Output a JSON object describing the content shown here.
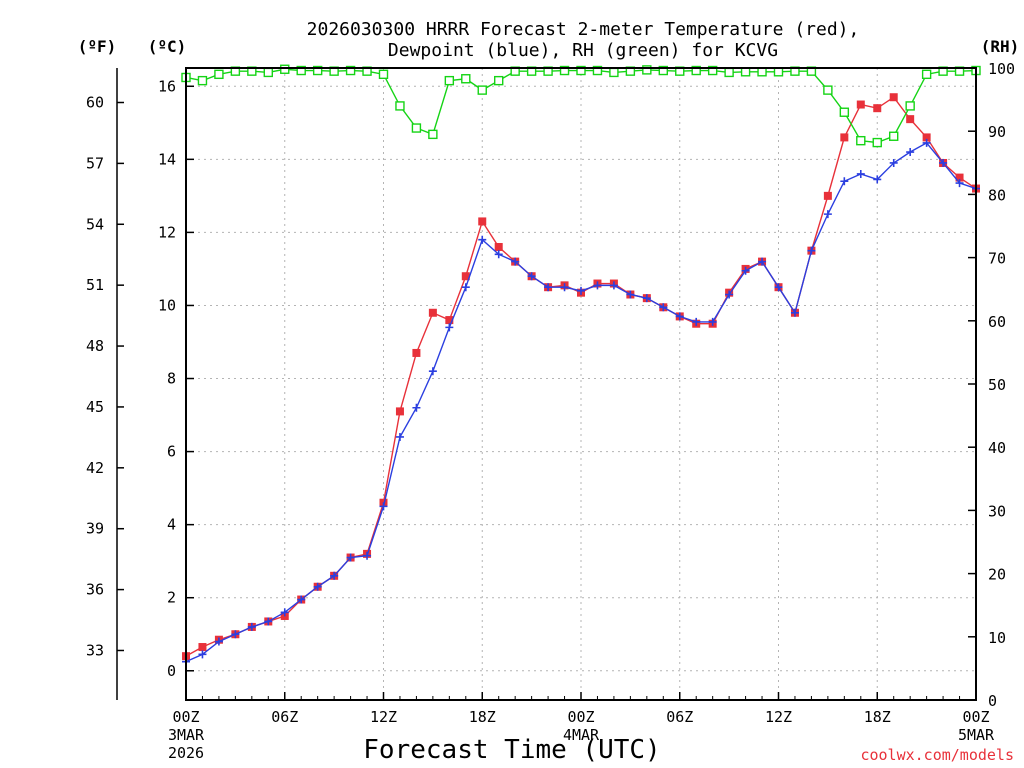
{
  "chart_data": {
    "type": "line",
    "title_lines": [
      "2026030300 HRRR Forecast 2-meter Temperature (red),",
      "Dewpoint (blue), RH (green) for KCVG"
    ],
    "xlabel": "Forecast Time (UTC)",
    "x_start_label": [
      "3MAR",
      "2026"
    ],
    "x_tick_labels": [
      "00Z",
      "06Z",
      "12Z",
      "18Z",
      "00Z",
      "06Z",
      "12Z",
      "18Z",
      "00Z"
    ],
    "x_date_labels": [
      {
        "tick": 0,
        "lines": [
          "3MAR",
          "2026"
        ]
      },
      {
        "tick": 4,
        "lines": [
          "4MAR"
        ]
      },
      {
        "tick": 8,
        "lines": [
          "5MAR"
        ]
      }
    ],
    "xlim_hours": [
      0,
      48
    ],
    "y_left_c": {
      "label": "(ºC)",
      "ticks": [
        0,
        2,
        4,
        6,
        8,
        10,
        12,
        14,
        16
      ],
      "ylim": [
        -0.8,
        16.5
      ]
    },
    "y_left_f": {
      "label": "(ºF)",
      "ticks": [
        33,
        36,
        39,
        42,
        45,
        48,
        51,
        54,
        57,
        60
      ]
    },
    "y_right_rh": {
      "label": "(RH)",
      "ticks": [
        0,
        10,
        20,
        30,
        40,
        50,
        60,
        70,
        80,
        90,
        100
      ],
      "ylim": [
        0,
        100
      ]
    },
    "grid": true,
    "colors": {
      "temperature": "#e8313a",
      "dewpoint": "#2b3fe0",
      "rh": "#15d415"
    },
    "series": [
      {
        "key": "temperature",
        "x": [
          0,
          1,
          2,
          3,
          4,
          5,
          6,
          7,
          8,
          9,
          10,
          11,
          12,
          13,
          14,
          15,
          16,
          17,
          18,
          19,
          20,
          21,
          22,
          23,
          24,
          25,
          26,
          27,
          28,
          29,
          30,
          31,
          32,
          33,
          34,
          35,
          36,
          37,
          38,
          39,
          40,
          41,
          42,
          43,
          44,
          45,
          46,
          47,
          48
        ],
        "values": [
          0.4,
          0.65,
          0.85,
          1.0,
          1.2,
          1.35,
          1.5,
          1.95,
          2.3,
          2.6,
          3.1,
          3.2,
          4.6,
          7.1,
          8.7,
          9.8,
          9.6,
          10.8,
          12.3,
          11.6,
          11.2,
          10.8,
          10.5,
          10.55,
          10.35,
          10.6,
          10.6,
          10.3,
          10.2,
          9.95,
          9.7,
          9.5,
          9.5,
          10.35,
          11.0,
          11.2,
          10.5,
          9.8,
          11.5,
          13.0,
          14.6,
          15.5,
          15.4,
          15.7,
          15.1,
          14.6,
          13.9,
          13.5,
          13.2
        ]
      },
      {
        "key": "dewpoint",
        "x": [
          0,
          1,
          2,
          3,
          4,
          5,
          6,
          7,
          8,
          9,
          10,
          11,
          12,
          13,
          14,
          15,
          16,
          17,
          18,
          19,
          20,
          21,
          22,
          23,
          24,
          25,
          26,
          27,
          28,
          29,
          30,
          31,
          32,
          33,
          34,
          35,
          36,
          37,
          38,
          39,
          40,
          41,
          42,
          43,
          44,
          45,
          46,
          47,
          48
        ],
        "values": [
          0.25,
          0.45,
          0.8,
          1.0,
          1.2,
          1.35,
          1.6,
          1.95,
          2.3,
          2.6,
          3.1,
          3.15,
          4.5,
          6.4,
          7.2,
          8.2,
          9.4,
          10.5,
          11.8,
          11.4,
          11.2,
          10.8,
          10.5,
          10.5,
          10.4,
          10.55,
          10.55,
          10.3,
          10.2,
          9.95,
          9.7,
          9.55,
          9.55,
          10.3,
          10.95,
          11.2,
          10.5,
          9.8,
          11.5,
          12.5,
          13.4,
          13.6,
          13.45,
          13.9,
          14.2,
          14.45,
          13.9,
          13.35,
          13.2
        ]
      },
      {
        "key": "rh",
        "x": [
          0,
          1,
          2,
          3,
          4,
          5,
          6,
          7,
          8,
          9,
          10,
          11,
          12,
          13,
          14,
          15,
          16,
          17,
          18,
          19,
          20,
          21,
          22,
          23,
          24,
          25,
          26,
          27,
          28,
          29,
          30,
          31,
          32,
          33,
          34,
          35,
          36,
          37,
          38,
          39,
          40,
          41,
          42,
          43,
          44,
          45,
          46,
          47,
          48
        ],
        "values": [
          98.5,
          98,
          99,
          99.5,
          99.5,
          99.3,
          99.8,
          99.6,
          99.6,
          99.5,
          99.6,
          99.5,
          99,
          94,
          90.5,
          89.5,
          98,
          98.3,
          96.5,
          98,
          99.5,
          99.5,
          99.5,
          99.6,
          99.6,
          99.6,
          99.3,
          99.5,
          99.7,
          99.6,
          99.5,
          99.6,
          99.6,
          99.3,
          99.4,
          99.4,
          99.4,
          99.5,
          99.5,
          96.5,
          93,
          88.5,
          88.2,
          89.2,
          94,
          99,
          99.5,
          99.5,
          99.6
        ]
      }
    ]
  },
  "credit": "coolwx.com/models"
}
